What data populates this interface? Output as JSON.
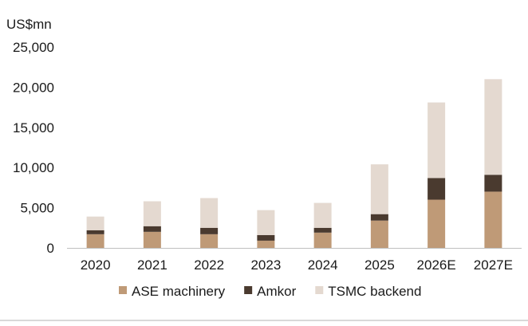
{
  "chart_data": {
    "type": "bar",
    "stacked": true,
    "unit_label": "US$mn",
    "categories": [
      "2020",
      "2021",
      "2022",
      "2023",
      "2024",
      "2025",
      "2026E",
      "2027E"
    ],
    "series": [
      {
        "name": "ASE machinery",
        "color": "#bf9a77",
        "values": [
          1700,
          2000,
          1700,
          900,
          1900,
          3400,
          6000,
          7000
        ]
      },
      {
        "name": "Amkor",
        "color": "#4a3a2f",
        "values": [
          500,
          700,
          800,
          700,
          600,
          800,
          2700,
          2100
        ]
      },
      {
        "name": "TSMC backend",
        "color": "#e4d9d0",
        "values": [
          1700,
          3100,
          3700,
          3100,
          3100,
          6200,
          9400,
          11900
        ]
      }
    ],
    "y_ticks": [
      "0",
      "5,000",
      "10,000",
      "15,000",
      "20,000",
      "25,000"
    ],
    "y_tick_values": [
      0,
      5000,
      10000,
      15000,
      20000,
      25000
    ],
    "ylim": [
      0,
      25000
    ],
    "grid": false,
    "legend_position": "bottom"
  }
}
